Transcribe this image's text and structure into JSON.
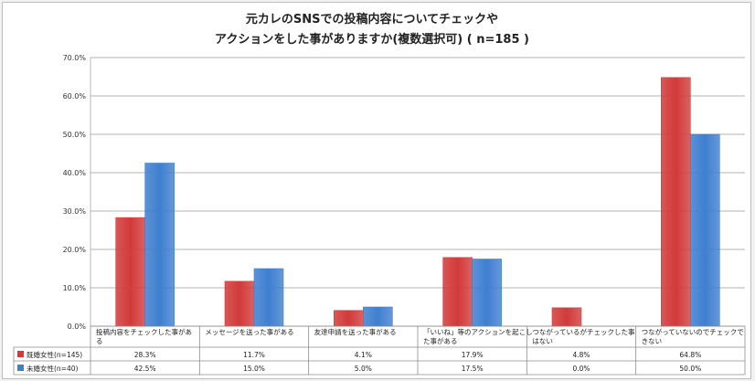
{
  "chart_data": {
    "type": "bar",
    "title_line1": "元カレのSNSでの投稿内容についてチェックや",
    "title_line2": "アクションをした事がありますか(複数選択可) ( n=185 )",
    "categories": [
      [
        "投稿内容をチェックした事があ",
        "る"
      ],
      [
        "メッセージを送った事がある"
      ],
      [
        "友達申請を送った事がある"
      ],
      [
        "「いいね」等のアクションを起こし",
        "た事がある"
      ],
      [
        "つながっているがチェックした事",
        "はない"
      ],
      [
        "つながっていないのでチェックで",
        "きない"
      ]
    ],
    "series": [
      {
        "name": "既婚女性(n=145)",
        "values": [
          28.3,
          11.7,
          4.1,
          17.9,
          4.8,
          64.8
        ],
        "labels": [
          "28.3%",
          "11.7%",
          "4.1%",
          "17.9%",
          "4.8%",
          "64.8%"
        ],
        "color": "#d23a3a"
      },
      {
        "name": "未婚女性(n=40)",
        "values": [
          42.5,
          15.0,
          5.0,
          17.5,
          0.0,
          50.0
        ],
        "labels": [
          "42.5%",
          "15.0%",
          "5.0%",
          "17.5%",
          "0.0%",
          "50.0%"
        ],
        "color": "#3f7fd0"
      }
    ],
    "y_ticks": [
      "0.0%",
      "10.0%",
      "20.0%",
      "30.0%",
      "40.0%",
      "50.0%",
      "60.0%",
      "70.0%"
    ],
    "ylim": [
      0,
      70
    ],
    "grid": true,
    "legend": "data-table"
  }
}
